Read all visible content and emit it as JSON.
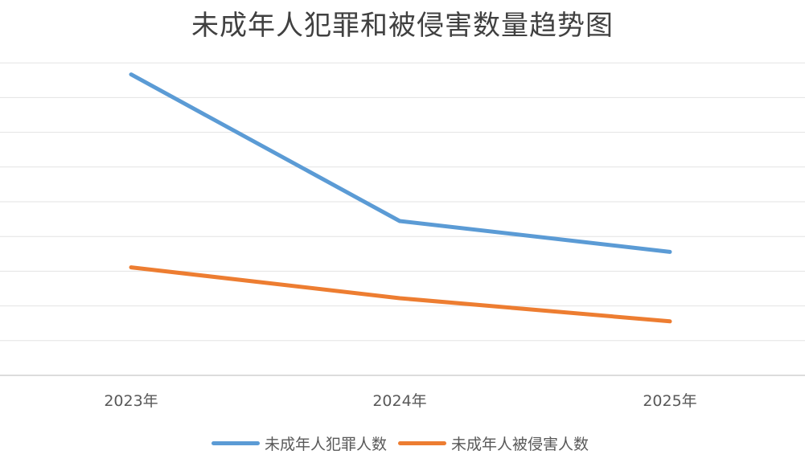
{
  "chart_data": {
    "type": "line",
    "title": "未成年人犯罪和被侵害数量趋势图",
    "xlabel": "",
    "ylabel": "",
    "categories": [
      "2023年",
      "2024年",
      "2025年"
    ],
    "series": [
      {
        "name": "未成年人犯罪人数",
        "values": [
          78,
          40,
          32
        ],
        "color": "#5B9BD5"
      },
      {
        "name": "未成年人被侵害人数",
        "values": [
          28,
          20,
          14
        ],
        "color": "#ED7D31"
      }
    ],
    "ylim": [
      0,
      90
    ],
    "grid": true,
    "legend_position": "bottom",
    "y_tick_labels_visible": false
  }
}
